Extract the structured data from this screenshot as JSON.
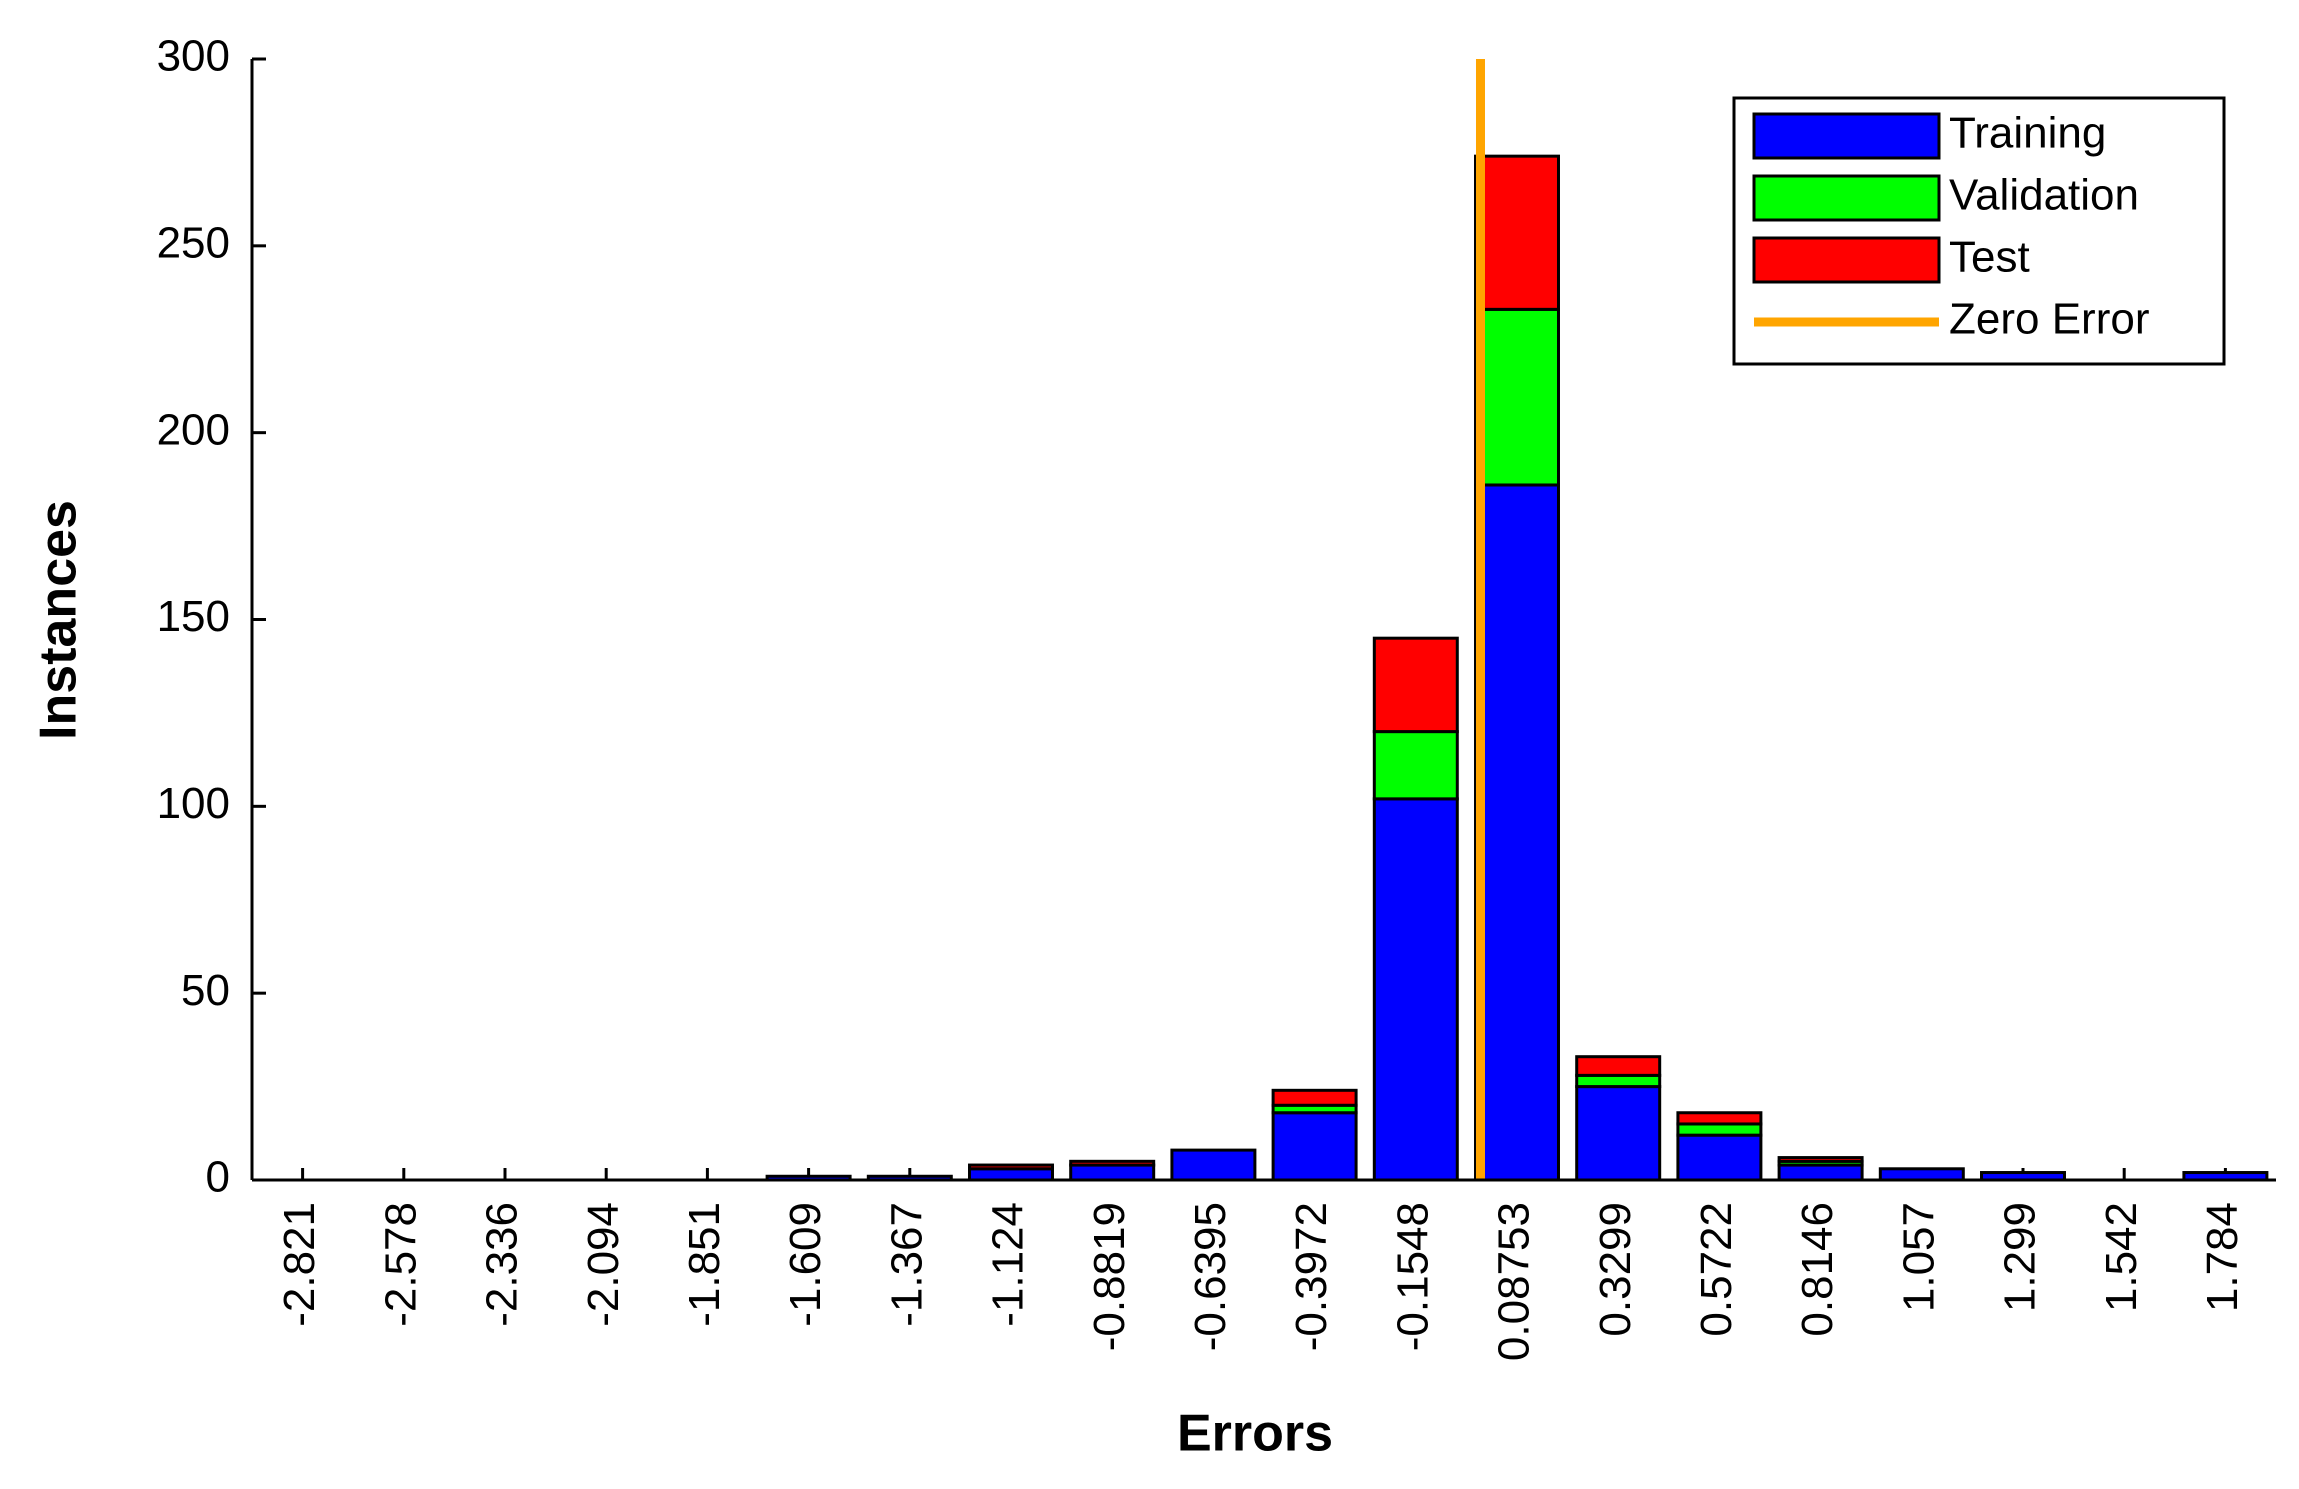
{
  "chart_data": {
    "type": "bar",
    "stacked": true,
    "xlabel": "Errors",
    "ylabel": "Instances",
    "categories": [
      "-2.821",
      "-2.578",
      "-2.336",
      "-2.094",
      "-1.851",
      "-1.609",
      "-1.367",
      "-1.124",
      "-0.8819",
      "-0.6395",
      "-0.3972",
      "-0.1548",
      "0.08753",
      "0.3299",
      "0.5722",
      "0.8146",
      "1.057",
      "1.299",
      "1.542",
      "1.784"
    ],
    "series": [
      {
        "name": "Training",
        "color": "#0000ff",
        "values": [
          0,
          0,
          0,
          0,
          0,
          1,
          1,
          3,
          4,
          8,
          18,
          102,
          186,
          25,
          12,
          4,
          3,
          2,
          0,
          2
        ]
      },
      {
        "name": "Validation",
        "color": "#00ff00",
        "values": [
          0,
          0,
          0,
          0,
          0,
          0,
          0,
          0,
          0,
          0,
          2,
          18,
          47,
          3,
          3,
          1,
          0,
          0,
          0,
          0
        ]
      },
      {
        "name": "Test",
        "color": "#ff0000",
        "values": [
          0,
          0,
          0,
          0,
          0,
          0,
          0,
          1,
          1,
          0,
          4,
          25,
          41,
          5,
          3,
          1,
          0,
          0,
          0,
          0
        ]
      }
    ],
    "zero_line": {
      "name": "Zero Error",
      "value": 0,
      "color": "#ffa500"
    },
    "ylim": [
      0,
      300
    ],
    "yticks": [
      0,
      50,
      100,
      150,
      200,
      250,
      300
    ],
    "legend": "upper right"
  }
}
